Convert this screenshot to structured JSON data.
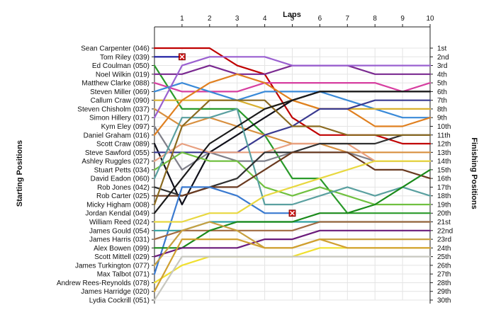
{
  "chart_data": {
    "type": "line",
    "title": "Laps",
    "xlabel": "Laps",
    "y_left_label": "Starting Positions",
    "y_right_label": "Finishing Positions",
    "x": [
      0,
      1,
      2,
      3,
      4,
      5,
      6,
      7,
      8,
      9,
      10
    ],
    "x_tick_labels": [
      "1",
      "2",
      "3",
      "4",
      "5",
      "6",
      "7",
      "8",
      "9",
      "10"
    ],
    "y_range": [
      1,
      30
    ],
    "y_inverted": true,
    "grid": true,
    "starting_labels": [
      "Sean Carpenter (046)",
      "Tom Riley (039)",
      "Ed Coulman (050)",
      "Noel Wilkin (019)",
      "Matthew Clarke (088)",
      "Steven Miller (069)",
      "Callum Craw (090)",
      "Steven Chisholm (037)",
      "Simon Hillery (017)",
      "Kym Eley (097)",
      "Daniel Graham (016)",
      "Scott Craw (089)",
      "Steve Sawford (055)",
      "Ashley Ruggles (027)",
      "Stuart Petts (034)",
      "David Eadon (060)",
      "Rob Jones (042)",
      "Rob Carter (025)",
      "Micky Higham (008)",
      "Jordan Kendal (049)",
      "William Reed (024)",
      "James Gould (054)",
      "James Harris (031)",
      "Alex Bowen (099)",
      "Scott Mittell (029)",
      "James Turkington (077)",
      "Max Talbot (071)",
      "Andrew Rees-Reynolds (078)",
      "James Harridge (020)",
      "Lydia Cockrill (051)"
    ],
    "finishing_labels": [
      "1st",
      "2nd",
      "3rd",
      "4th",
      "5th",
      "6th",
      "7th",
      "8th",
      "9th",
      "10th",
      "11th",
      "12th",
      "13th",
      "14th",
      "15th",
      "16th",
      "17th",
      "18th",
      "19th",
      "20th",
      "21st",
      "22nd",
      "23rd",
      "24th",
      "25th",
      "26th",
      "27th",
      "28th",
      "29th",
      "30th"
    ],
    "series": [
      {
        "color": "#c00000",
        "positions": [
          1,
          1,
          1,
          3,
          4,
          9,
          11,
          11,
          11,
          12,
          12
        ]
      },
      {
        "color": "#1a1aa0",
        "positions": [
          2,
          2
        ],
        "retired": true
      },
      {
        "color": "#2a9a2a",
        "positions": [
          3,
          8,
          8,
          8,
          11,
          16,
          16,
          20,
          20,
          20,
          20
        ]
      },
      {
        "color": "#7a2a90",
        "positions": [
          4,
          4,
          3,
          4,
          4,
          3,
          3,
          3,
          4,
          4,
          4
        ]
      },
      {
        "color": "#d63fa0",
        "positions": [
          5,
          6,
          6,
          6,
          5,
          5,
          5,
          5,
          5,
          6,
          5
        ]
      },
      {
        "color": "#3a8ad8",
        "positions": [
          6,
          5,
          6,
          7,
          6,
          6,
          6,
          7,
          8,
          9,
          9
        ]
      },
      {
        "color": "#d8b030",
        "positions": [
          7,
          7,
          7,
          7,
          8,
          7,
          8,
          8,
          8,
          8,
          8
        ]
      },
      {
        "color": "#d89040",
        "positions": [
          8,
          10,
          9,
          10,
          11,
          12,
          12,
          13,
          13,
          13,
          13
        ]
      },
      {
        "color": "#9a60d0",
        "positions": [
          9,
          3,
          2,
          2,
          2,
          3,
          3,
          3,
          3,
          3,
          3
        ]
      },
      {
        "color": "#80808a",
        "positions": [
          10,
          15,
          13,
          14,
          14,
          13,
          13,
          13,
          14,
          14,
          14
        ]
      },
      {
        "color": "#e08020",
        "positions": [
          11,
          7,
          5,
          4,
          5,
          7,
          8,
          8,
          10,
          10,
          9
        ]
      },
      {
        "color": "#10101a",
        "positions": [
          12,
          19,
          13,
          11,
          9,
          7,
          6,
          6,
          6,
          6,
          6
        ]
      },
      {
        "color": "#3a3a90",
        "positions": [
          13,
          13,
          13,
          13,
          11,
          10,
          8,
          8,
          7,
          7,
          7
        ]
      },
      {
        "color": "#e8a080",
        "positions": [
          14,
          12,
          13,
          13,
          13,
          12,
          12,
          12,
          14,
          14,
          14
        ]
      },
      {
        "color": "#70c040",
        "positions": [
          15,
          13,
          14,
          14,
          17,
          18,
          17,
          18,
          19,
          19,
          19
        ]
      },
      {
        "color": "#5aa0a0",
        "positions": [
          16,
          9,
          9,
          8,
          19,
          19,
          18,
          17,
          18,
          17,
          18
        ]
      },
      {
        "color": "#303030",
        "positions": [
          17,
          18,
          17,
          16,
          13,
          13,
          12,
          12,
          12,
          11,
          11
        ]
      },
      {
        "color": "#6a3a20",
        "positions": [
          18,
          18,
          17,
          17,
          15,
          13,
          13,
          13,
          15,
          15,
          16
        ]
      },
      {
        "color": "#8a6a20",
        "positions": [
          19,
          10,
          7,
          7,
          7,
          10,
          10,
          11,
          11,
          11,
          11
        ]
      },
      {
        "color": "#1a1a1a",
        "positions": [
          20,
          16,
          12,
          10,
          8,
          7,
          6,
          6,
          6,
          6,
          6
        ]
      },
      {
        "color": "#3a7ad0",
        "positions": [
          27,
          17,
          17,
          18,
          20,
          20
        ],
        "retired": true
      },
      {
        "color": "#e8d840",
        "positions": [
          21,
          21,
          20,
          20,
          18,
          17,
          16,
          15,
          14,
          14,
          14
        ]
      },
      {
        "color": "#30a0a0",
        "positions": [
          22,
          22,
          21,
          21,
          21,
          21,
          21,
          21,
          21,
          21,
          21
        ]
      },
      {
        "color": "#a06a40",
        "positions": [
          23,
          22,
          22,
          22,
          22,
          22,
          21,
          21,
          21,
          21,
          21
        ]
      },
      {
        "color": "#1a8a1a",
        "positions": [
          24,
          24,
          22,
          21,
          21,
          21,
          20,
          20,
          19,
          17,
          15
        ]
      },
      {
        "color": "#6a1a7a",
        "positions": [
          25,
          24,
          24,
          24,
          23,
          23,
          22,
          22,
          22,
          22,
          22
        ]
      },
      {
        "color": "#c8a040",
        "positions": [
          26,
          22,
          21,
          22,
          24,
          24,
          23,
          23,
          23,
          23,
          23
        ]
      },
      {
        "color": "#f0e030",
        "positions": [
          28,
          26,
          25,
          25,
          25,
          25,
          24,
          24,
          24,
          24,
          24
        ]
      },
      {
        "color": "#d0a030",
        "positions": [
          29,
          23,
          23,
          23,
          24,
          24,
          23,
          24,
          24,
          24,
          24
        ]
      },
      {
        "color": "#c8c8c0",
        "positions": [
          30,
          25,
          25,
          25,
          25,
          25,
          25,
          25,
          25,
          25,
          25
        ]
      }
    ]
  }
}
